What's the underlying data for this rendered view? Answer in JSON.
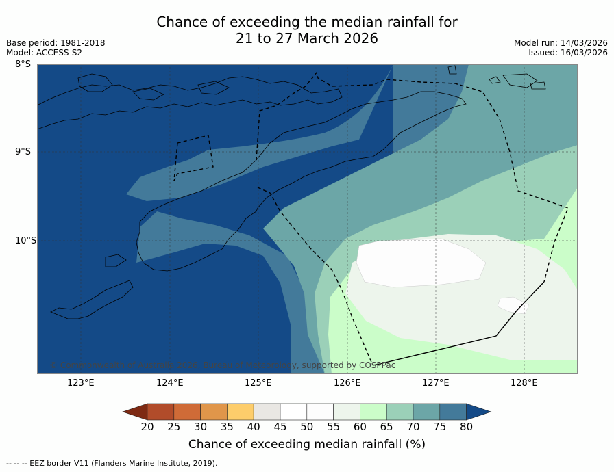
{
  "title": {
    "line1": "Chance of exceeding the median rainfall for",
    "line2": "21 to 27 March 2026"
  },
  "meta": {
    "base_period": "Base period: 1981-2018",
    "model": "Model: ACCESS-S2",
    "model_run": "Model run: 14/03/2026",
    "issued": "Issued: 16/03/2026"
  },
  "map": {
    "lat_labels": [
      "8°S",
      "9°S",
      "10°S"
    ],
    "lon_labels": [
      "123°E",
      "124°E",
      "125°E",
      "126°E",
      "127°E",
      "128°E"
    ],
    "copyright": "© Commonwealth of Australia 2026, Bureau of Meteorology, supported by COSPPac"
  },
  "colorbar": {
    "labels": [
      "20",
      "25",
      "30",
      "35",
      "40",
      "45",
      "50",
      "55",
      "60",
      "65",
      "70",
      "75",
      "80"
    ],
    "colors": [
      "#7e2a13",
      "#b14c2a",
      "#cf6b37",
      "#e0964a",
      "#fdcd6b",
      "#e9e7e3",
      "#ffffff",
      "#fdfdfd",
      "#edf5ec",
      "#cbfdc9",
      "#9bd0b8",
      "#6ca6a7",
      "#437a9a",
      "#144a87"
    ],
    "title": "Chance of exceeding median rainfall (%)"
  },
  "footnote": "--  --  -- EEZ border V11 (Flanders Marine Institute, 2019)."
}
